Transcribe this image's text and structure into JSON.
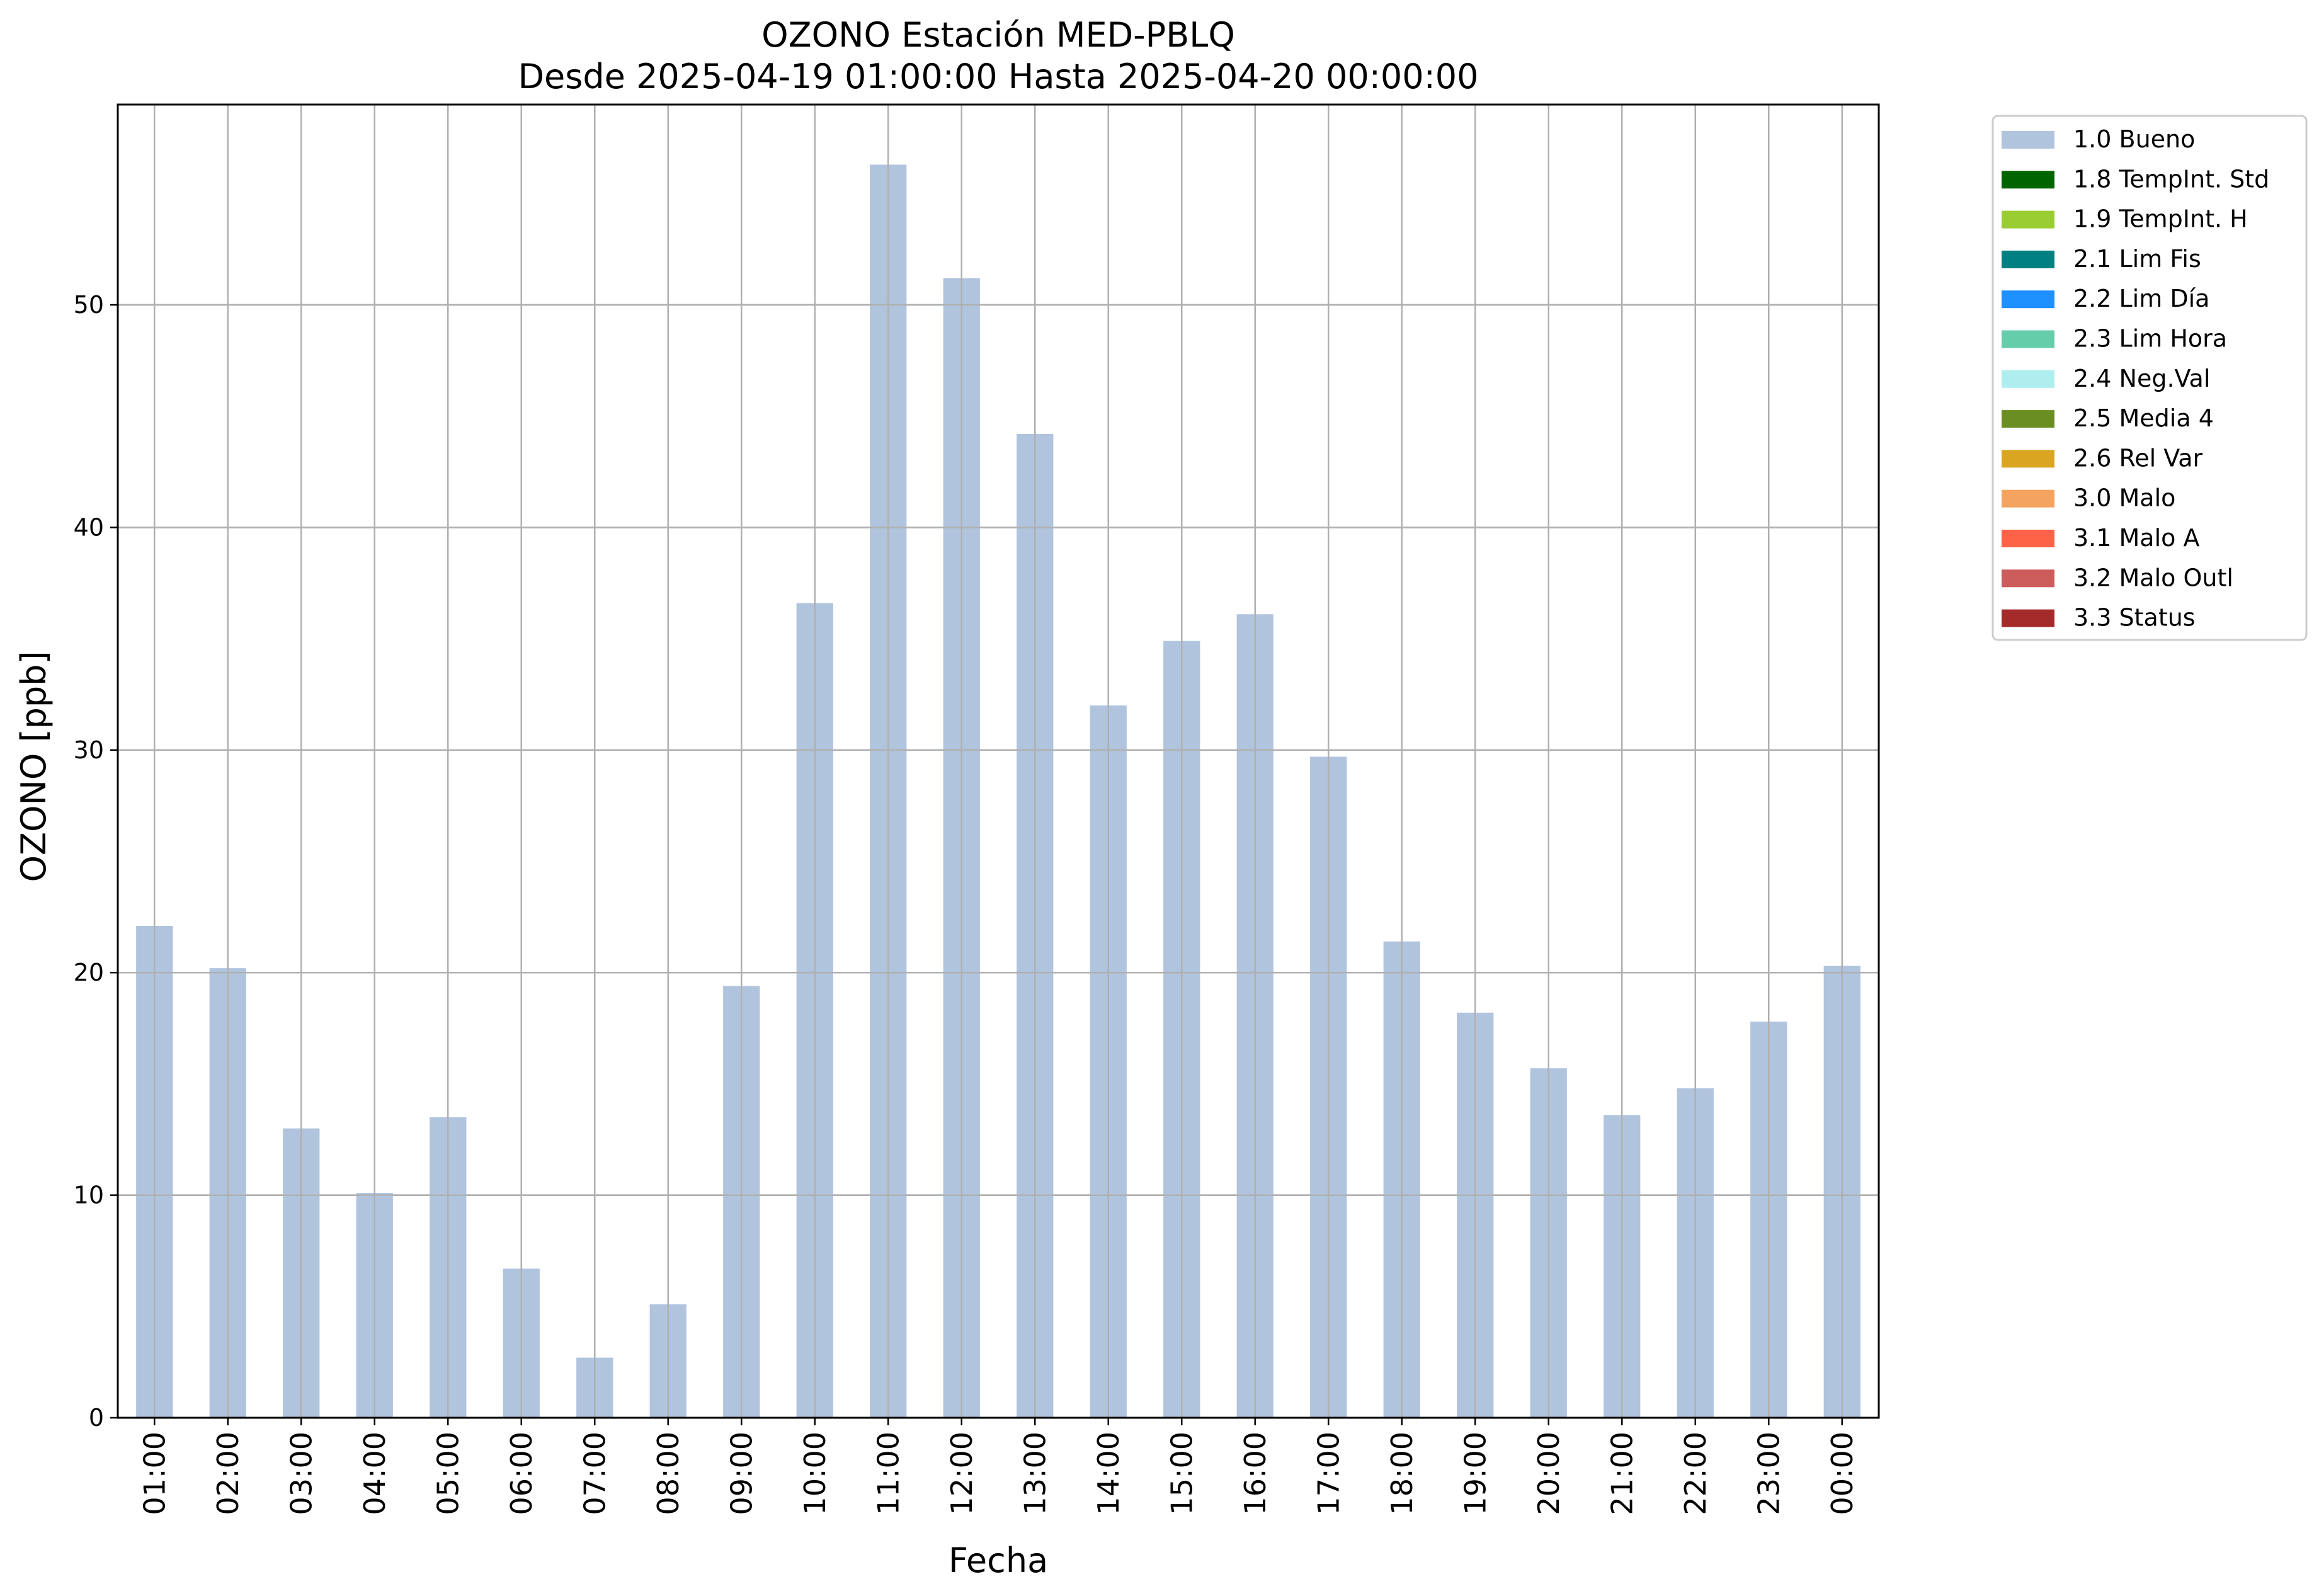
{
  "chart_data": {
    "type": "bar",
    "title": "OZONO Estación MED-PBLQ",
    "subtitle": "Desde 2025-04-19 01:00:00 Hasta 2025-04-20 00:00:00",
    "xlabel": "Fecha",
    "ylabel": "OZONO [ppb]",
    "ylim": [
      0,
      59
    ],
    "yticks": [
      "0",
      "10",
      "20",
      "30",
      "40",
      "50"
    ],
    "grid": true,
    "legend_position": "outside-top-right",
    "categories": [
      "01:00",
      "02:00",
      "03:00",
      "04:00",
      "05:00",
      "06:00",
      "07:00",
      "08:00",
      "09:00",
      "10:00",
      "11:00",
      "12:00",
      "13:00",
      "14:00",
      "15:00",
      "16:00",
      "17:00",
      "18:00",
      "19:00",
      "20:00",
      "21:00",
      "22:00",
      "23:00",
      "00:00"
    ],
    "series": [
      {
        "name": "1.0 Bueno",
        "color": "#b0c4de",
        "values": [
          22.1,
          20.2,
          13.0,
          10.1,
          13.5,
          6.7,
          2.7,
          5.1,
          19.4,
          36.6,
          56.3,
          51.2,
          44.2,
          32.0,
          34.9,
          36.1,
          29.7,
          21.4,
          18.2,
          15.7,
          13.6,
          14.8,
          17.8,
          20.3
        ]
      }
    ],
    "legend": [
      {
        "label": "1.0 Bueno",
        "color": "#b0c4de"
      },
      {
        "label": "1.8 TempInt. Std",
        "color": "#006400"
      },
      {
        "label": "1.9 TempInt. H",
        "color": "#9acd32"
      },
      {
        "label": "2.1 Lim Fis",
        "color": "#008080"
      },
      {
        "label": "2.2 Lim Día",
        "color": "#1e90ff"
      },
      {
        "label": "2.3 Lim Hora",
        "color": "#66cdaa"
      },
      {
        "label": "2.4 Neg.Val",
        "color": "#afeeee"
      },
      {
        "label": "2.5 Media 4",
        "color": "#6b8e23"
      },
      {
        "label": "2.6 Rel Var",
        "color": "#daa520"
      },
      {
        "label": "3.0 Malo",
        "color": "#f4a460"
      },
      {
        "label": "3.1 Malo A",
        "color": "#ff6347"
      },
      {
        "label": "3.2 Malo Outl",
        "color": "#cd5c5c"
      },
      {
        "label": "3.3 Status",
        "color": "#a52a2a"
      }
    ]
  }
}
